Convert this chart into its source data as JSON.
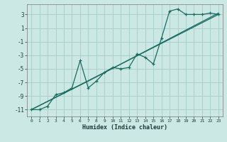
{
  "xlabel": "Humidex (Indice chaleur)",
  "background_color": "#cce8e4",
  "grid_color": "#aacfcb",
  "line_color": "#1a6b60",
  "xlim": [
    -0.5,
    23.5
  ],
  "ylim": [
    -12.0,
    4.5
  ],
  "yticks": [
    3,
    1,
    -1,
    -3,
    -5,
    -7,
    -9,
    -11
  ],
  "xticks": [
    0,
    1,
    2,
    3,
    4,
    5,
    6,
    7,
    8,
    9,
    10,
    11,
    12,
    13,
    14,
    15,
    16,
    17,
    18,
    19,
    20,
    21,
    22,
    23
  ],
  "line1_x": [
    0,
    1,
    2,
    3,
    4,
    5,
    6,
    7,
    8,
    9,
    10,
    11,
    12,
    13,
    14,
    15,
    16,
    17,
    18,
    19,
    20,
    21,
    22,
    23
  ],
  "line1_y": [
    -11,
    -11,
    -10.5,
    -8.8,
    -8.5,
    -7.8,
    -3.8,
    -7.8,
    -6.8,
    -5.5,
    -4.8,
    -5.0,
    -4.8,
    -2.8,
    -3.3,
    -4.3,
    -0.5,
    3.5,
    3.8,
    3.0,
    3.0,
    3.0,
    3.2,
    3.0
  ],
  "line2_x": [
    0,
    23
  ],
  "line2_y": [
    -11,
    3.0
  ],
  "line3_x": [
    0,
    7,
    23
  ],
  "line3_y": [
    -11,
    -6.8,
    3.2
  ],
  "marker": "+"
}
